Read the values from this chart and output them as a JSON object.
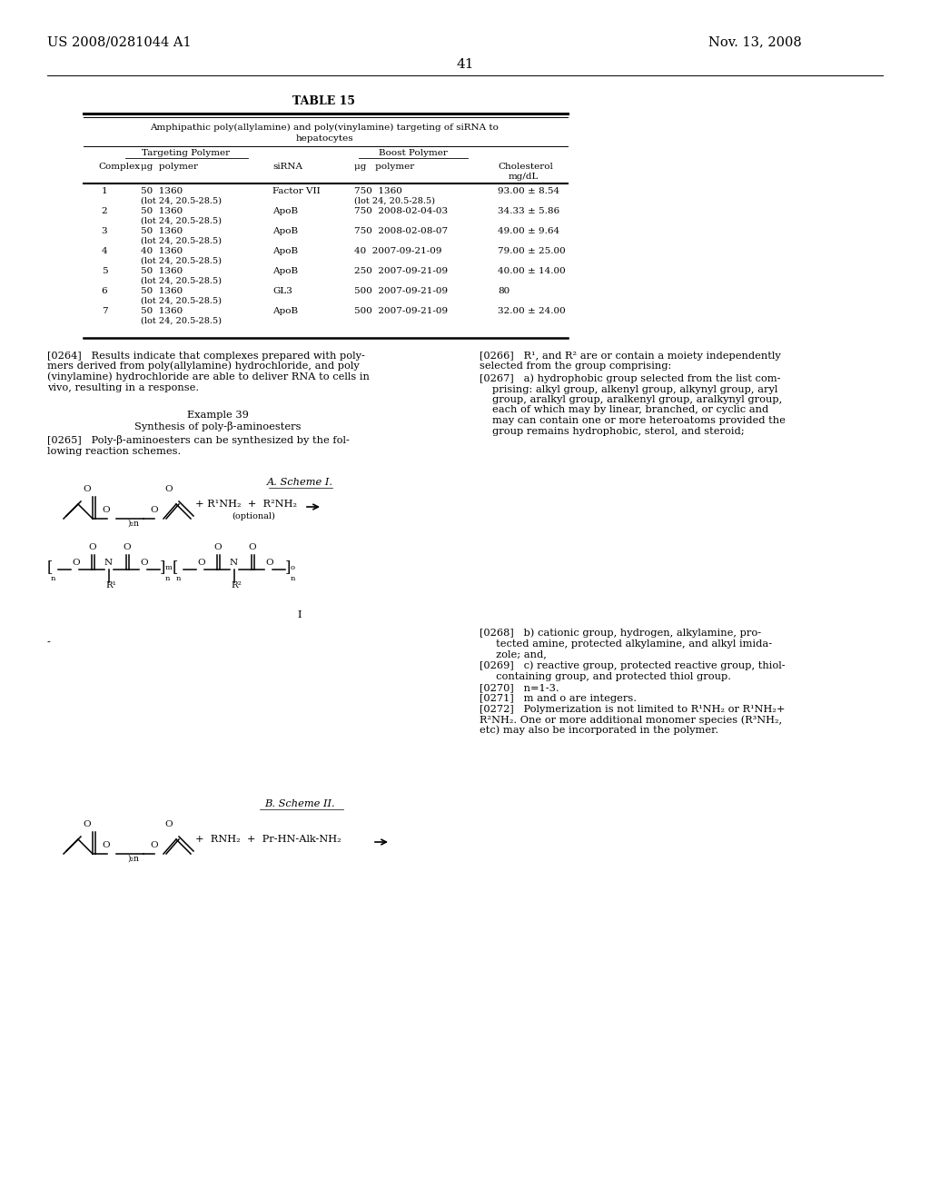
{
  "page_number": "41",
  "header_left": "US 2008/0281044 A1",
  "header_right": "Nov. 13, 2008",
  "bg_color": "#ffffff",
  "text_color": "#000000"
}
